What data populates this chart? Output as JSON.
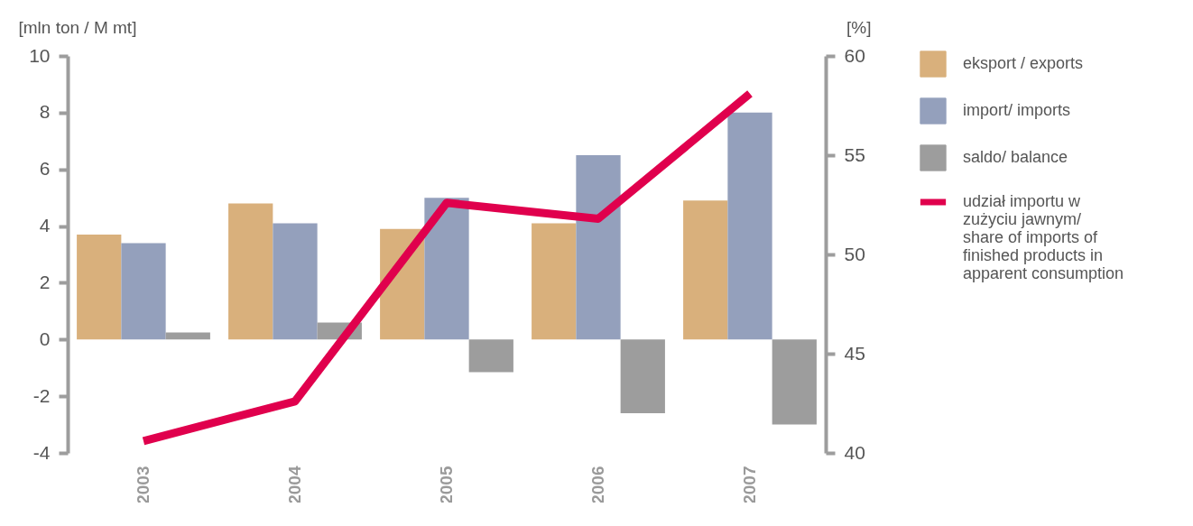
{
  "chart_data": {
    "type": "bar",
    "ylabel": "[mln ton / M mt]",
    "y2label": "[%]",
    "categories": [
      "2003",
      "2004",
      "2005",
      "2006",
      "2007"
    ],
    "series": [
      {
        "name": "eksport / exports",
        "color": "#d9b07c",
        "values": [
          3.7,
          4.8,
          3.9,
          4.1,
          4.9
        ]
      },
      {
        "name": "import/ imports",
        "color": "#94a0bc",
        "values": [
          3.4,
          4.1,
          5.0,
          6.5,
          8.0
        ]
      },
      {
        "name": "saldo/ balance",
        "color": "#9d9d9d",
        "values": [
          0.25,
          0.6,
          -1.15,
          -2.6,
          -3.0
        ]
      },
      {
        "name": "udział importu w zużyciu jawnym/ share of imports of finished products in apparent consumption",
        "type": "line",
        "axis": "y2",
        "color": "#e0004d",
        "marker": "none",
        "line_style": "solid",
        "values": [
          40.6,
          42.6,
          52.6,
          51.8,
          58.1
        ]
      }
    ],
    "ylim": [
      -4,
      10
    ],
    "yticks": [
      -4,
      -2,
      0,
      2,
      4,
      6,
      8,
      10
    ],
    "y2lim": [
      40,
      60
    ],
    "y2ticks": [
      40,
      45,
      50,
      55,
      60
    ],
    "grid": false,
    "legend": "right"
  }
}
